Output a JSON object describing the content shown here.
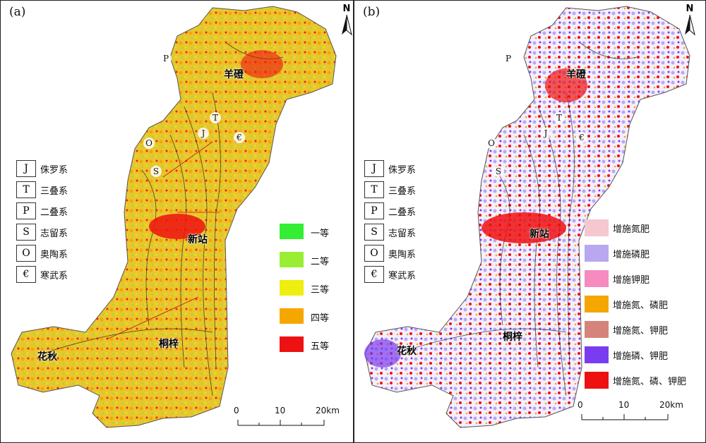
{
  "panels": [
    {
      "label": "(a)"
    },
    {
      "label": "(b)"
    }
  ],
  "north_label": "N",
  "strata_legend": [
    {
      "symbol": "J",
      "name": "侏罗系"
    },
    {
      "symbol": "T",
      "name": "三叠系"
    },
    {
      "symbol": "P",
      "name": "二叠系"
    },
    {
      "symbol": "S",
      "name": "志留系"
    },
    {
      "symbol": "O",
      "name": "奥陶系"
    },
    {
      "symbol": "€",
      "name": "寒武系"
    }
  ],
  "grade_legend": [
    {
      "name": "一等",
      "color": "#33ee33"
    },
    {
      "name": "二等",
      "color": "#99ee33"
    },
    {
      "name": "三等",
      "color": "#eeee11"
    },
    {
      "name": "四等",
      "color": "#f5a700"
    },
    {
      "name": "五等",
      "color": "#ee1111"
    }
  ],
  "fertilizer_legend": [
    {
      "name": "增施氮肥",
      "color": "#f5c8d0"
    },
    {
      "name": "增施磷肥",
      "color": "#b9a7f0"
    },
    {
      "name": "增施钾肥",
      "color": "#f58bbf"
    },
    {
      "name": "增施氮、磷肥",
      "color": "#f5a700"
    },
    {
      "name": "增施氮、钾肥",
      "color": "#d4847a"
    },
    {
      "name": "增施磷、钾肥",
      "color": "#7a3cf0"
    },
    {
      "name": "增施氮、磷、钾肥",
      "color": "#ee1111"
    }
  ],
  "scale_labels": [
    "0",
    "10",
    "20km"
  ],
  "places": [
    "羊磴",
    "新站",
    "桐梓",
    "花秋"
  ],
  "map_colors": {
    "a_base": "#e6d23a",
    "a_mid": "#f0b000",
    "b_base": "#ffffff"
  },
  "strata_marks": [
    "J",
    "T",
    "P",
    "S",
    "O",
    "€"
  ]
}
